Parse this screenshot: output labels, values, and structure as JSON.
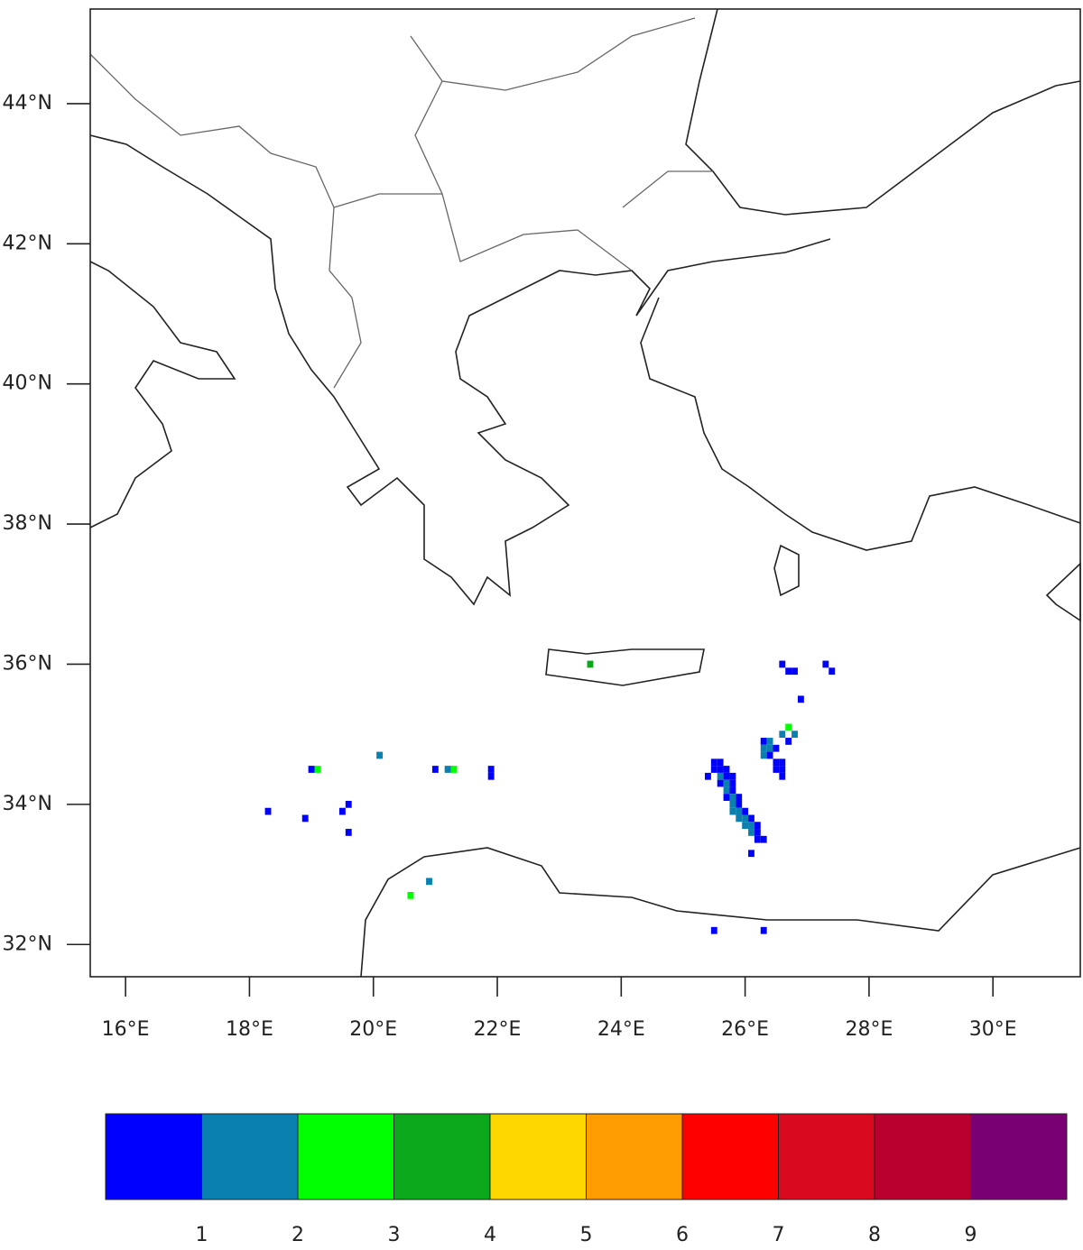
{
  "map": {
    "lon_range": [
      15.43,
      31.41
    ],
    "lat_range": [
      31.54,
      45.35
    ],
    "lon_ticks": [
      {
        "value": 16,
        "label": "16°E"
      },
      {
        "value": 18,
        "label": "18°E"
      },
      {
        "value": 20,
        "label": "20°E"
      },
      {
        "value": 22,
        "label": "22°E"
      },
      {
        "value": 24,
        "label": "24°E"
      },
      {
        "value": 26,
        "label": "26°E"
      },
      {
        "value": 28,
        "label": "28°E"
      },
      {
        "value": 30,
        "label": "30°E"
      }
    ],
    "lat_ticks": [
      {
        "value": 44,
        "label": "44°N"
      },
      {
        "value": 42,
        "label": "42°N"
      },
      {
        "value": 40,
        "label": "40°N"
      },
      {
        "value": 38,
        "label": "38°N"
      },
      {
        "value": 36,
        "label": "36°N"
      },
      {
        "value": 34,
        "label": "34°N"
      },
      {
        "value": 32,
        "label": "32°N"
      }
    ],
    "colorbar": {
      "levels": [
        1,
        2,
        3,
        4,
        5,
        6,
        7,
        8,
        9
      ],
      "colors": [
        "#0000ff",
        "#0a80b0",
        "#00ff00",
        "#0aa81a",
        "#ffd700",
        "#ff9c00",
        "#ff0000",
        "#d90a20",
        "#b9002e",
        "#780073"
      ]
    },
    "cells": [
      [
        25.5,
        34.6,
        0.5
      ],
      [
        25.6,
        34.6,
        0.5
      ],
      [
        25.5,
        34.5,
        0.5
      ],
      [
        25.6,
        34.5,
        0.5
      ],
      [
        25.7,
        34.5,
        0.5
      ],
      [
        25.4,
        34.4,
        0.5
      ],
      [
        25.6,
        34.4,
        1.5
      ],
      [
        25.7,
        34.4,
        0.5
      ],
      [
        25.8,
        34.4,
        0.5
      ],
      [
        25.6,
        34.3,
        0.5
      ],
      [
        25.7,
        34.3,
        1.5
      ],
      [
        25.8,
        34.3,
        0.5
      ],
      [
        25.7,
        34.2,
        1.5
      ],
      [
        25.8,
        34.2,
        0.5
      ],
      [
        25.7,
        34.1,
        0.5
      ],
      [
        25.8,
        34.1,
        1.5
      ],
      [
        25.9,
        34.1,
        0.5
      ],
      [
        25.8,
        34.0,
        1.5
      ],
      [
        25.9,
        34.0,
        0.5
      ],
      [
        25.8,
        33.9,
        1.5
      ],
      [
        25.9,
        33.9,
        1.5
      ],
      [
        26.0,
        33.9,
        0.5
      ],
      [
        25.9,
        33.8,
        1.5
      ],
      [
        26.0,
        33.8,
        1.5
      ],
      [
        26.1,
        33.8,
        0.5
      ],
      [
        26.0,
        33.7,
        1.5
      ],
      [
        26.1,
        33.7,
        1.5
      ],
      [
        26.2,
        33.7,
        0.5
      ],
      [
        26.1,
        33.6,
        1.5
      ],
      [
        26.2,
        33.6,
        0.5
      ],
      [
        26.2,
        33.5,
        0.5
      ],
      [
        26.3,
        33.5,
        0.5
      ],
      [
        26.1,
        33.3,
        0.5
      ],
      [
        26.3,
        34.9,
        0.5
      ],
      [
        26.4,
        34.9,
        1.5
      ],
      [
        26.3,
        34.8,
        1.5
      ],
      [
        26.4,
        34.8,
        1.5
      ],
      [
        26.5,
        34.8,
        0.5
      ],
      [
        26.3,
        34.7,
        1.5
      ],
      [
        26.4,
        34.7,
        0.5
      ],
      [
        26.5,
        34.6,
        0.5
      ],
      [
        26.6,
        34.6,
        0.5
      ],
      [
        26.5,
        34.5,
        0.5
      ],
      [
        26.6,
        34.5,
        0.5
      ],
      [
        26.6,
        34.4,
        0.5
      ],
      [
        26.6,
        35.0,
        1.5
      ],
      [
        26.7,
        35.1,
        2.5
      ],
      [
        26.8,
        35.0,
        1.5
      ],
      [
        26.7,
        34.9,
        0.5
      ],
      [
        26.6,
        36.0,
        0.5
      ],
      [
        26.7,
        35.9,
        0.5
      ],
      [
        26.8,
        35.9,
        0.5
      ],
      [
        27.3,
        36.0,
        0.5
      ],
      [
        27.4,
        35.9,
        0.5
      ],
      [
        26.9,
        35.5,
        0.5
      ],
      [
        23.5,
        36.0,
        3.5
      ],
      [
        21.2,
        34.5,
        1.5
      ],
      [
        21.3,
        34.5,
        2.5
      ],
      [
        21.0,
        34.5,
        0.5
      ],
      [
        21.9,
        34.5,
        0.5
      ],
      [
        21.9,
        34.4,
        0.5
      ],
      [
        19.1,
        34.5,
        2.5
      ],
      [
        19.0,
        34.5,
        0.5
      ],
      [
        19.6,
        34.0,
        0.5
      ],
      [
        19.5,
        33.9,
        0.5
      ],
      [
        18.9,
        33.8,
        0.5
      ],
      [
        18.3,
        33.9,
        0.5
      ],
      [
        19.6,
        33.6,
        0.5
      ],
      [
        20.1,
        34.7,
        1.5
      ],
      [
        20.9,
        32.9,
        1.5
      ],
      [
        20.6,
        32.7,
        2.5
      ],
      [
        25.5,
        32.2,
        0.5
      ],
      [
        26.3,
        32.2,
        0.5
      ]
    ]
  }
}
